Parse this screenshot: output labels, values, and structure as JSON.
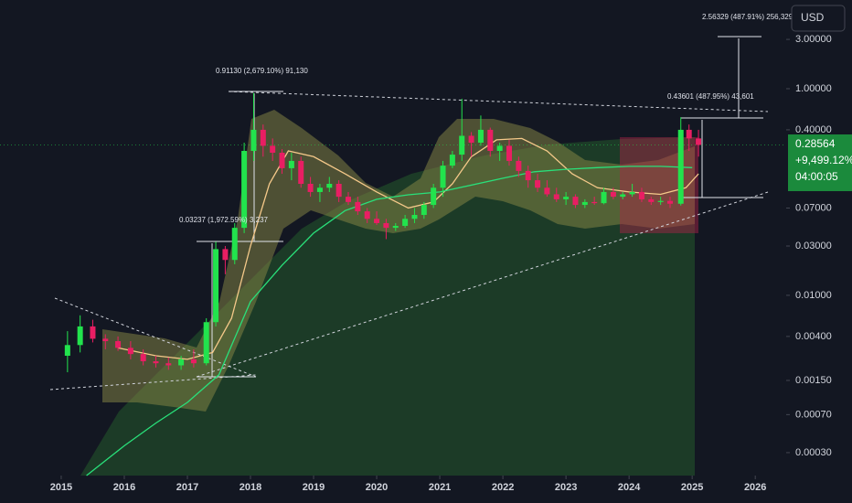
{
  "chart_data": {
    "type": "candlestick",
    "log_scale": true,
    "xlim": [
      2014.03,
      2026.49
    ],
    "ylim": [
      0.00018,
      7.22
    ],
    "xticks": [
      2015,
      2016,
      2017,
      2018,
      2019,
      2020,
      2021,
      2022,
      2023,
      2024,
      2025,
      2026
    ],
    "yticks": [
      {
        "value": 3,
        "label": "3.00000"
      },
      {
        "value": 1,
        "label": "1.00000"
      },
      {
        "value": 0.4,
        "label": "0.40000"
      },
      {
        "value": 0.07,
        "label": "0.07000"
      },
      {
        "value": 0.03,
        "label": "0.03000"
      },
      {
        "value": 0.01,
        "label": "0.01000"
      },
      {
        "value": 0.004,
        "label": "0.00400"
      },
      {
        "value": 0.0015,
        "label": "0.00150"
      },
      {
        "value": 0.0007,
        "label": "0.00070"
      },
      {
        "value": 0.0003,
        "label": "0.00030"
      }
    ],
    "up_color": "#22e34d",
    "down_color": "#e91e63",
    "candles": {
      "x": [
        2015.1,
        2015.3,
        2015.5,
        2015.7,
        2015.9,
        2016.1,
        2016.3,
        2016.5,
        2016.7,
        2016.9,
        2017.1,
        2017.3,
        2017.45,
        2017.6,
        2017.75,
        2017.9,
        2018.05,
        2018.2,
        2018.35,
        2018.5,
        2018.65,
        2018.8,
        2018.95,
        2019.1,
        2019.25,
        2019.4,
        2019.55,
        2019.7,
        2019.85,
        2020.0,
        2020.15,
        2020.3,
        2020.45,
        2020.6,
        2020.75,
        2020.9,
        2021.05,
        2021.2,
        2021.35,
        2021.5,
        2021.65,
        2021.8,
        2021.95,
        2022.1,
        2022.25,
        2022.4,
        2022.55,
        2022.7,
        2022.85,
        2023.0,
        2023.15,
        2023.3,
        2023.45,
        2023.6,
        2023.75,
        2023.9,
        2024.05,
        2024.2,
        2024.35,
        2024.5,
        2024.65,
        2024.82,
        2024.95,
        2025.1
      ],
      "open": [
        0.0026,
        0.0033,
        0.005,
        0.0038,
        0.0036,
        0.0031,
        0.0027,
        0.0023,
        0.0022,
        0.0021,
        0.0024,
        0.0022,
        0.0055,
        0.028,
        0.022,
        0.045,
        0.25,
        0.4,
        0.28,
        0.24,
        0.17,
        0.2,
        0.12,
        0.1,
        0.11,
        0.12,
        0.09,
        0.08,
        0.065,
        0.055,
        0.05,
        0.045,
        0.047,
        0.055,
        0.06,
        0.075,
        0.11,
        0.18,
        0.23,
        0.35,
        0.3,
        0.4,
        0.25,
        0.28,
        0.2,
        0.16,
        0.13,
        0.11,
        0.095,
        0.085,
        0.09,
        0.075,
        0.08,
        0.078,
        0.1,
        0.09,
        0.095,
        0.1,
        0.085,
        0.08,
        0.082,
        0.077,
        0.4,
        0.33
      ],
      "high": [
        0.0045,
        0.0064,
        0.0058,
        0.0042,
        0.004,
        0.0036,
        0.003,
        0.0026,
        0.0025,
        0.0026,
        0.003,
        0.006,
        0.033,
        0.03,
        0.05,
        0.3,
        0.91,
        0.45,
        0.33,
        0.26,
        0.24,
        0.22,
        0.14,
        0.12,
        0.14,
        0.13,
        0.1,
        0.09,
        0.07,
        0.065,
        0.055,
        0.05,
        0.06,
        0.07,
        0.08,
        0.12,
        0.2,
        0.25,
        0.8,
        0.38,
        0.55,
        0.42,
        0.3,
        0.32,
        0.22,
        0.18,
        0.15,
        0.13,
        0.11,
        0.1,
        0.095,
        0.085,
        0.09,
        0.11,
        0.11,
        0.1,
        0.12,
        0.11,
        0.09,
        0.09,
        0.09,
        0.53,
        0.45,
        0.4
      ],
      "low": [
        0.0018,
        0.0028,
        0.0035,
        0.003,
        0.0029,
        0.0024,
        0.0021,
        0.002,
        0.0019,
        0.0019,
        0.002,
        0.0021,
        0.005,
        0.016,
        0.02,
        0.04,
        0.2,
        0.22,
        0.2,
        0.15,
        0.13,
        0.11,
        0.09,
        0.08,
        0.1,
        0.08,
        0.075,
        0.06,
        0.05,
        0.048,
        0.035,
        0.042,
        0.045,
        0.05,
        0.055,
        0.07,
        0.09,
        0.17,
        0.2,
        0.22,
        0.28,
        0.22,
        0.2,
        0.18,
        0.14,
        0.11,
        0.1,
        0.09,
        0.08,
        0.075,
        0.07,
        0.07,
        0.075,
        0.076,
        0.085,
        0.085,
        0.09,
        0.08,
        0.075,
        0.075,
        0.07,
        0.074,
        0.25,
        0.22
      ],
      "close": [
        0.0033,
        0.005,
        0.0038,
        0.0036,
        0.0031,
        0.0027,
        0.0023,
        0.0022,
        0.0021,
        0.0024,
        0.0022,
        0.0055,
        0.028,
        0.022,
        0.045,
        0.25,
        0.4,
        0.28,
        0.24,
        0.17,
        0.2,
        0.12,
        0.1,
        0.11,
        0.12,
        0.09,
        0.08,
        0.065,
        0.055,
        0.05,
        0.045,
        0.047,
        0.055,
        0.06,
        0.075,
        0.11,
        0.18,
        0.23,
        0.35,
        0.3,
        0.4,
        0.25,
        0.28,
        0.2,
        0.16,
        0.13,
        0.11,
        0.095,
        0.085,
        0.09,
        0.075,
        0.08,
        0.078,
        0.1,
        0.09,
        0.095,
        0.1,
        0.085,
        0.08,
        0.082,
        0.077,
        0.4,
        0.33,
        0.28564
      ]
    },
    "series": [
      {
        "color": "#f5c98a",
        "x": [
          2015.9,
          2016.5,
          2017.0,
          2017.4,
          2017.7,
          2018.0,
          2018.3,
          2018.6,
          2019.0,
          2019.5,
          2020.0,
          2020.5,
          2020.9,
          2021.2,
          2021.5,
          2021.9,
          2022.3,
          2022.7,
          2023.1,
          2023.5,
          2024.0,
          2024.5,
          2024.9,
          2025.1
        ],
        "values": [
          0.0031,
          0.0026,
          0.0024,
          0.0028,
          0.006,
          0.03,
          0.12,
          0.25,
          0.22,
          0.15,
          0.1,
          0.07,
          0.08,
          0.12,
          0.22,
          0.32,
          0.33,
          0.25,
          0.15,
          0.11,
          0.1,
          0.095,
          0.11,
          0.15
        ]
      },
      {
        "color": "#29e07a",
        "x": [
          2015.4,
          2016.0,
          2016.5,
          2017.0,
          2017.5,
          2018.0,
          2018.5,
          2019.0,
          2019.5,
          2020.0,
          2020.5,
          2021.0,
          2022.0,
          2022.5,
          2023.0,
          2023.5,
          2024.0,
          2024.5,
          2025.0
        ],
        "values": [
          0.00018,
          0.00035,
          0.00058,
          0.00092,
          0.0017,
          0.0087,
          0.0195,
          0.04,
          0.066,
          0.085,
          0.094,
          0.1,
          0.136,
          0.157,
          0.166,
          0.172,
          0.177,
          0.177,
          0.172
        ]
      }
    ],
    "annotations": [
      "2.56329 (487.91%) 256,329",
      "0.91130 (2,679.10%) 91,130",
      "0.03237 (1,972.59%) 3,237",
      "0.43601 (487.95%) 43,601"
    ],
    "last_price": 0.28564,
    "change_label": "+9,499.12%",
    "countdown": "04:00:05",
    "currency": "USD"
  }
}
